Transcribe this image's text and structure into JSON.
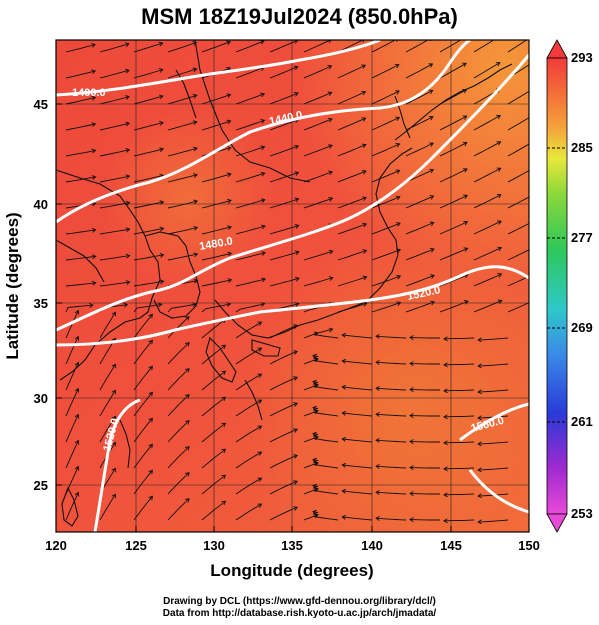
{
  "title": "MSM 18Z19Jul2024 (850.0hPa)",
  "x_axis": {
    "label": "Longitude (degrees)",
    "ticks": [
      "120",
      "125",
      "130",
      "135",
      "140",
      "145",
      "150"
    ]
  },
  "y_axis": {
    "label": "Latitude  (degrees)",
    "ticks": [
      "25",
      "30",
      "35",
      "40",
      "45"
    ]
  },
  "colorbar": {
    "ticks": [
      "293",
      "285",
      "277",
      "269",
      "261",
      "253"
    ],
    "min": 253,
    "max": 293
  },
  "contours": [
    {
      "label": "1400.0"
    },
    {
      "label": "1440.0"
    },
    {
      "label": "1480.0"
    },
    {
      "label": "1520.0"
    },
    {
      "label": "1520.0"
    },
    {
      "label": "1560.0"
    }
  ],
  "credits": {
    "line1": "Drawing by DCL (https://www.gfd-dennou.org/library/dcl/)",
    "line2": "Data from http://database.rish.kyoto-u.ac.jp/arch/jmadata/"
  },
  "chart_data": {
    "type": "heatmap",
    "title": "MSM 18Z19Jul2024 (850.0hPa)",
    "xlabel": "Longitude (degrees)",
    "ylabel": "Latitude  (degrees)",
    "xlim": [
      120,
      150
    ],
    "ylim": [
      22.5,
      48
    ],
    "colorbar_range": [
      253,
      293
    ],
    "contour_levels": [
      1400,
      1440,
      1480,
      1520,
      1560
    ],
    "grid": true
  }
}
